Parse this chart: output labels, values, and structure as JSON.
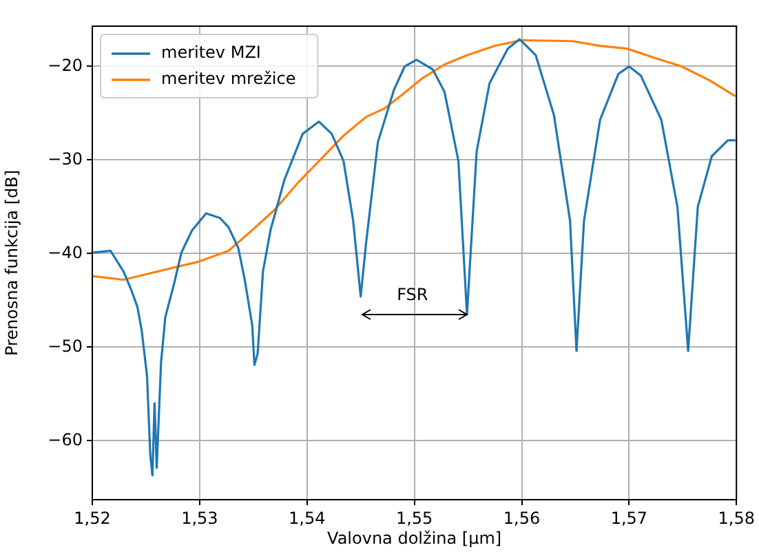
{
  "chart_data": {
    "type": "line",
    "xlabel": "Valovna dolžina [μm]",
    "ylabel": "Prenosna funkcija [dB]",
    "xlim": [
      1.52,
      1.58
    ],
    "ylim": [
      -66.3,
      -15.7
    ],
    "xticks": [
      {
        "value": 1.52,
        "label": "1,52"
      },
      {
        "value": 1.53,
        "label": "1,53"
      },
      {
        "value": 1.54,
        "label": "1,54"
      },
      {
        "value": 1.55,
        "label": "1,55"
      },
      {
        "value": 1.56,
        "label": "1,56"
      },
      {
        "value": 1.57,
        "label": "1,57"
      },
      {
        "value": 1.58,
        "label": "1,58"
      }
    ],
    "yticks": [
      {
        "value": -60,
        "label": "−60"
      },
      {
        "value": -50,
        "label": "−50"
      },
      {
        "value": -40,
        "label": "−40"
      },
      {
        "value": -30,
        "label": "−30"
      },
      {
        "value": -20,
        "label": "−20"
      }
    ],
    "grid": true,
    "legend": "top left",
    "marker": "none",
    "line_style": "solid",
    "annotations": [
      "FSR"
    ],
    "series": [
      {
        "name": "meritev MZI",
        "color": "#1f77b4",
        "x": [
          1.52,
          1.5217,
          1.5229,
          1.5236,
          1.5242,
          1.5246,
          1.5251,
          1.5254,
          1.5256,
          1.5258,
          1.526,
          1.5264,
          1.5268,
          1.5276,
          1.5283,
          1.5293,
          1.5306,
          1.5319,
          1.5327,
          1.5336,
          1.5342,
          1.5349,
          1.5351,
          1.5354,
          1.5359,
          1.5366,
          1.5379,
          1.5396,
          1.5411,
          1.5423,
          1.5434,
          1.5443,
          1.545,
          1.5455,
          1.5466,
          1.5481,
          1.5491,
          1.5502,
          1.5517,
          1.5528,
          1.5541,
          1.5549,
          1.5558,
          1.557,
          1.5587,
          1.5598,
          1.5613,
          1.563,
          1.5645,
          1.5651,
          1.5658,
          1.5673,
          1.569,
          1.57,
          1.5711,
          1.573,
          1.5745,
          1.5755,
          1.5764,
          1.5777,
          1.5792,
          1.5799
        ],
        "values": [
          -39.9,
          -39.7,
          -41.9,
          -43.8,
          -45.7,
          -48.2,
          -53.1,
          -61.5,
          -63.7,
          -56.0,
          -62.9,
          -51.7,
          -46.8,
          -43.3,
          -39.9,
          -37.5,
          -35.7,
          -36.2,
          -37.2,
          -39.4,
          -42.8,
          -47.7,
          -51.9,
          -50.7,
          -41.9,
          -37.5,
          -32.1,
          -27.2,
          -25.9,
          -27.2,
          -30.1,
          -36.5,
          -44.6,
          -38.9,
          -28.1,
          -22.5,
          -20.0,
          -19.3,
          -20.3,
          -22.7,
          -30.1,
          -46.5,
          -29.1,
          -21.8,
          -18.1,
          -17.1,
          -18.8,
          -25.2,
          -36.5,
          -50.4,
          -36.5,
          -25.7,
          -20.8,
          -20.0,
          -21.0,
          -25.7,
          -35.0,
          -50.4,
          -35.0,
          -29.6,
          -27.9,
          -27.9
        ]
      },
      {
        "name": "meritev mrežice",
        "color": "#ff7f0e",
        "x": [
          1.52,
          1.5229,
          1.5254,
          1.5298,
          1.5327,
          1.5349,
          1.537,
          1.5391,
          1.5413,
          1.5434,
          1.5455,
          1.5472,
          1.5489,
          1.5507,
          1.5528,
          1.5549,
          1.5575,
          1.56,
          1.5647,
          1.5673,
          1.5698,
          1.5724,
          1.5749,
          1.5775,
          1.5799
        ],
        "values": [
          -42.4,
          -42.8,
          -42.1,
          -40.9,
          -39.7,
          -37.5,
          -35.3,
          -32.5,
          -29.9,
          -27.4,
          -25.4,
          -24.5,
          -23.0,
          -21.3,
          -19.8,
          -18.8,
          -17.8,
          -17.2,
          -17.3,
          -17.8,
          -18.1,
          -19.1,
          -20.0,
          -21.5,
          -23.2
        ]
      }
    ]
  }
}
